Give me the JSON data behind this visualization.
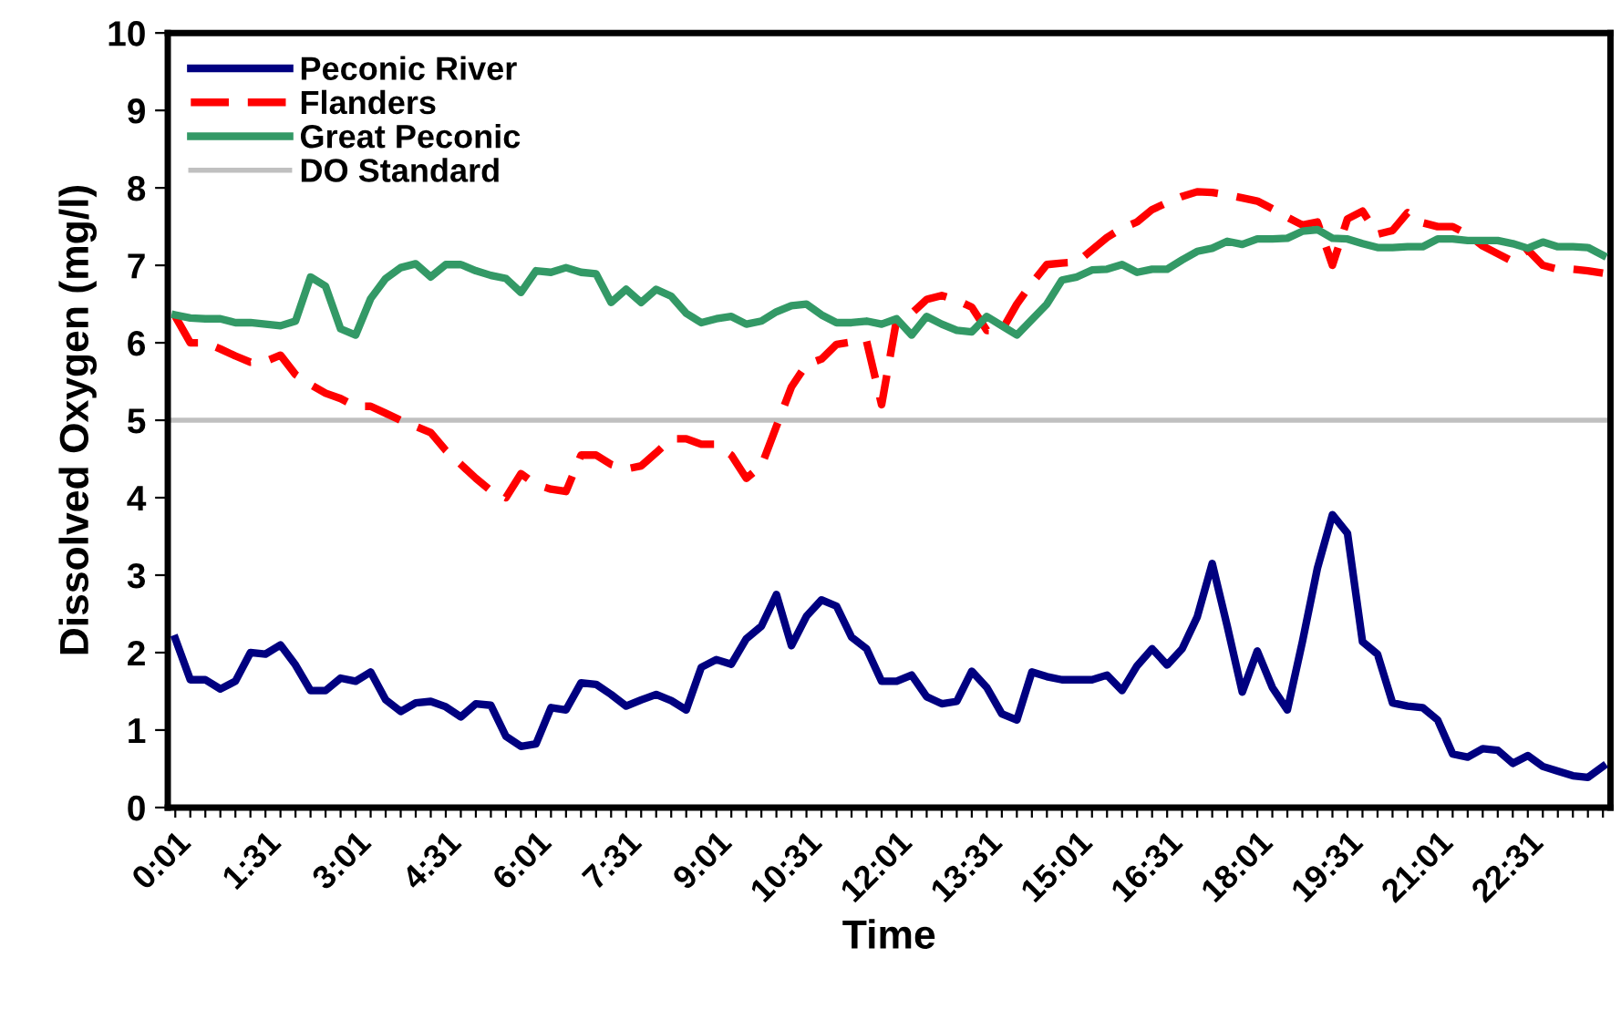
{
  "chart_data": {
    "type": "line",
    "xlabel": "Time",
    "ylabel": "Dissolved Oxygen (mg/l)",
    "categories": [
      "0:01",
      null,
      null,
      null,
      null,
      null,
      "1:31",
      null,
      null,
      null,
      null,
      null,
      "3:01",
      null,
      null,
      null,
      null,
      null,
      "4:31",
      null,
      null,
      null,
      null,
      null,
      "6:01",
      null,
      null,
      null,
      null,
      null,
      "7:31",
      null,
      null,
      null,
      null,
      null,
      "9:01",
      null,
      null,
      null,
      null,
      null,
      "10:31",
      null,
      null,
      null,
      null,
      null,
      "12:01",
      null,
      null,
      null,
      null,
      null,
      "13:31",
      null,
      null,
      null,
      null,
      null,
      "15:01",
      null,
      null,
      null,
      null,
      null,
      "16:31",
      null,
      null,
      null,
      null,
      null,
      "18:01",
      null,
      null,
      null,
      null,
      null,
      "19:31",
      null,
      null,
      null,
      null,
      null,
      "21:01",
      null,
      null,
      null,
      null,
      null,
      "22:31",
      null,
      null,
      null,
      null,
      null
    ],
    "series": [
      {
        "name": "Peconic River",
        "color": "#000080",
        "line_style": "solid",
        "values": [
          2.18,
          1.65,
          1.65,
          1.53,
          1.63,
          2.0,
          1.98,
          2.1,
          1.84,
          1.51,
          1.51,
          1.67,
          1.63,
          1.75,
          1.39,
          1.24,
          1.35,
          1.37,
          1.3,
          1.17,
          1.34,
          1.32,
          0.92,
          0.79,
          0.82,
          1.29,
          1.26,
          1.61,
          1.59,
          1.46,
          1.31,
          1.39,
          1.46,
          1.38,
          1.26,
          1.81,
          1.91,
          1.85,
          2.18,
          2.34,
          2.75,
          2.09,
          2.47,
          2.68,
          2.6,
          2.2,
          2.05,
          1.63,
          1.63,
          1.71,
          1.43,
          1.34,
          1.37,
          1.76,
          1.55,
          1.21,
          1.13,
          1.75,
          1.69,
          1.65,
          1.65,
          1.65,
          1.71,
          1.51,
          1.83,
          2.05,
          1.84,
          2.05,
          2.46,
          3.15,
          2.34,
          1.49,
          2.02,
          1.55,
          1.26,
          2.14,
          3.09,
          3.78,
          3.54,
          2.14,
          1.98,
          1.35,
          1.31,
          1.29,
          1.13,
          0.69,
          0.65,
          0.76,
          0.74,
          0.57,
          0.67,
          0.53,
          0.47,
          0.41,
          0.39,
          0.53
        ]
      },
      {
        "name": "Flanders",
        "color": "#ff0000",
        "line_style": "dashed",
        "values": [
          6.34,
          6.0,
          6.0,
          5.92,
          5.83,
          5.75,
          5.76,
          5.84,
          5.59,
          5.46,
          5.35,
          5.28,
          5.18,
          5.18,
          5.09,
          5.0,
          4.92,
          4.84,
          4.61,
          4.43,
          4.25,
          4.09,
          4.0,
          4.31,
          4.17,
          4.11,
          4.08,
          4.55,
          4.55,
          4.43,
          4.37,
          4.41,
          4.58,
          4.76,
          4.76,
          4.69,
          4.69,
          4.55,
          4.25,
          4.41,
          4.92,
          5.43,
          5.72,
          5.79,
          5.98,
          6.01,
          6.02,
          5.2,
          6.3,
          6.38,
          6.56,
          6.61,
          6.55,
          6.46,
          6.16,
          6.16,
          6.5,
          6.77,
          7.01,
          7.03,
          7.04,
          7.2,
          7.36,
          7.48,
          7.56,
          7.72,
          7.81,
          7.89,
          7.95,
          7.94,
          7.91,
          7.87,
          7.83,
          7.73,
          7.62,
          7.52,
          7.56,
          7.0,
          7.6,
          7.7,
          7.4,
          7.45,
          7.68,
          7.55,
          7.5,
          7.5,
          7.4,
          7.25,
          7.15,
          7.05,
          7.2,
          7.0,
          6.95,
          6.95,
          6.93,
          6.9
        ]
      },
      {
        "name": "Great Peconic",
        "color": "#339966",
        "line_style": "solid",
        "values": [
          6.36,
          6.32,
          6.31,
          6.31,
          6.26,
          6.26,
          6.24,
          6.22,
          6.28,
          6.85,
          6.73,
          6.18,
          6.1,
          6.57,
          6.83,
          6.97,
          7.02,
          6.85,
          7.01,
          7.01,
          6.93,
          6.87,
          6.83,
          6.65,
          6.93,
          6.91,
          6.97,
          6.91,
          6.89,
          6.52,
          6.69,
          6.52,
          6.69,
          6.6,
          6.38,
          6.26,
          6.31,
          6.34,
          6.24,
          6.28,
          6.4,
          6.48,
          6.5,
          6.36,
          6.26,
          6.26,
          6.28,
          6.24,
          6.31,
          6.1,
          6.34,
          6.24,
          6.16,
          6.14,
          6.34,
          6.22,
          6.1,
          6.3,
          6.5,
          6.81,
          6.85,
          6.94,
          6.95,
          7.01,
          6.91,
          6.95,
          6.95,
          7.07,
          7.18,
          7.22,
          7.31,
          7.27,
          7.34,
          7.34,
          7.35,
          7.44,
          7.46,
          7.35,
          7.34,
          7.28,
          7.23,
          7.23,
          7.24,
          7.24,
          7.34,
          7.34,
          7.32,
          7.32,
          7.32,
          7.28,
          7.22,
          7.3,
          7.24,
          7.24,
          7.23,
          7.13
        ]
      }
    ],
    "ref_lines": [
      {
        "axis": "y",
        "value": 5,
        "label": "DO Standard",
        "color": "#c0c0c0"
      }
    ],
    "ylim": [
      0,
      10
    ],
    "yticks": [
      0,
      1,
      2,
      3,
      4,
      5,
      6,
      7,
      8,
      9,
      10
    ],
    "grid": false,
    "legend": "top left",
    "marker": "none"
  }
}
